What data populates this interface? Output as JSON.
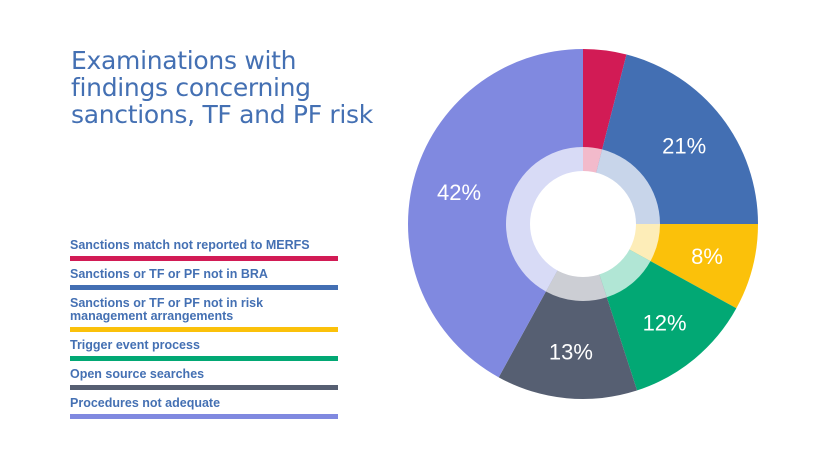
{
  "chart_data": {
    "type": "pie",
    "title": "Examinations with findings concerning sanctions, TF and PF risk",
    "donut": true,
    "legend_position": "left",
    "slices": [
      {
        "name": "Sanctions match not reported to MERFS",
        "value": 4,
        "label": "",
        "color": "#d21b55",
        "inner_color": "#f2bacb"
      },
      {
        "name": "Sanctions or TF or PF not in BRA",
        "value": 21,
        "label": "21%",
        "color": "#436fb3",
        "inner_color": "#c8d5ea"
      },
      {
        "name": "Sanctions or TF or PF not in risk management arrangements",
        "value": 8,
        "label": "8%",
        "color": "#fbc10a",
        "inner_color": "#fdedb8"
      },
      {
        "name": "Trigger event process",
        "value": 12,
        "label": "12%",
        "color": "#02a874",
        "inner_color": "#b1e6d5"
      },
      {
        "name": "Open source searches",
        "value": 13,
        "label": "13%",
        "color": "#565f72",
        "inner_color": "#ccced4"
      },
      {
        "name": "Procedures not adequate",
        "value": 42,
        "label": "42%",
        "color": "#8089e0",
        "inner_color": "#d8dbf6"
      }
    ]
  }
}
